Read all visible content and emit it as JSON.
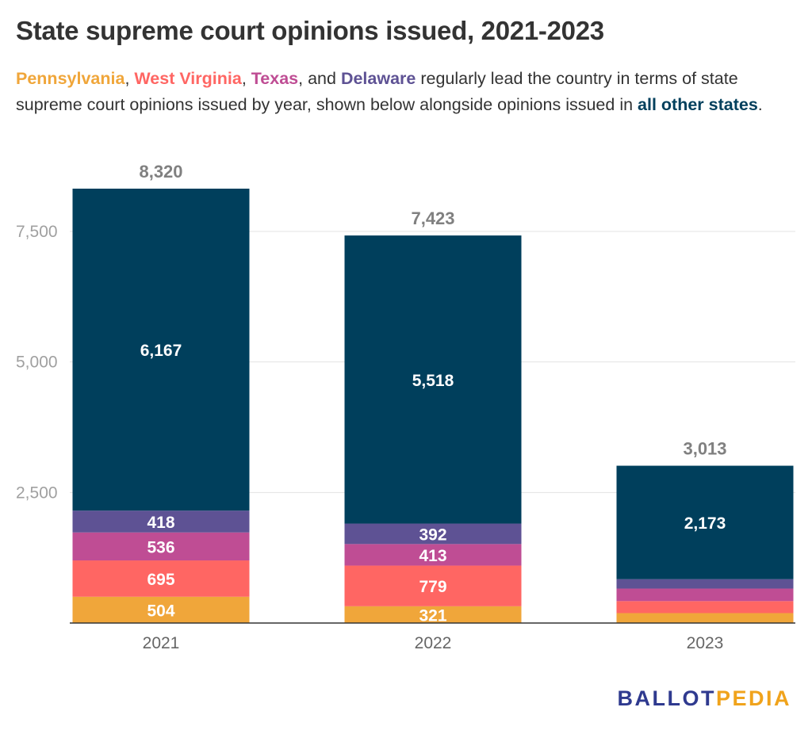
{
  "title": "State supreme court opinions issued, 2021-2023",
  "subtitle": {
    "segments": [
      {
        "text": "Pennsylvania",
        "color": "#f0a63a",
        "bold": true
      },
      {
        "text": ", "
      },
      {
        "text": "West Virginia",
        "color": "#ff6663",
        "bold": true
      },
      {
        "text": ", "
      },
      {
        "text": "Texas",
        "color": "#bf4d94",
        "bold": true
      },
      {
        "text": ", and "
      },
      {
        "text": "Delaware",
        "color": "#5e5294",
        "bold": true
      },
      {
        "text": " regularly lead the country in terms of state supreme court opinions issued by year, shown below alongside opinions issued in "
      },
      {
        "text": "all other states",
        "color": "#003f5c",
        "bold": true
      },
      {
        "text": "."
      }
    ]
  },
  "logo": {
    "part1": "BALLOT",
    "part2": "PEDIA"
  },
  "chart_data": {
    "type": "bar",
    "stacked": true,
    "categories": [
      "2021",
      "2022",
      "2023"
    ],
    "series": [
      {
        "name": "Pennsylvania",
        "color": "#f0a63a",
        "values": [
          504,
          321,
          190
        ],
        "labels": [
          "504",
          "321",
          ""
        ]
      },
      {
        "name": "West Virginia",
        "color": "#ff6663",
        "values": [
          695,
          779,
          230
        ],
        "labels": [
          "695",
          "779",
          ""
        ]
      },
      {
        "name": "Texas",
        "color": "#bf4d94",
        "values": [
          536,
          413,
          240
        ],
        "labels": [
          "536",
          "413",
          ""
        ]
      },
      {
        "name": "Delaware",
        "color": "#5e5294",
        "values": [
          418,
          392,
          180
        ],
        "labels": [
          "418",
          "392",
          ""
        ]
      },
      {
        "name": "all other states",
        "color": "#003f5c",
        "values": [
          6167,
          5518,
          2173
        ],
        "labels": [
          "6,167",
          "5,518",
          "2,173"
        ]
      }
    ],
    "totals": [
      8320,
      7423,
      3013
    ],
    "total_labels": [
      "8,320",
      "7,423",
      "3,013"
    ],
    "ylim": [
      0,
      8320
    ],
    "yticks": [
      2500,
      5000,
      7500
    ],
    "ytick_labels": [
      "2,500",
      "5,000",
      "7,500"
    ],
    "grid": true,
    "xlabel": "",
    "ylabel": ""
  }
}
